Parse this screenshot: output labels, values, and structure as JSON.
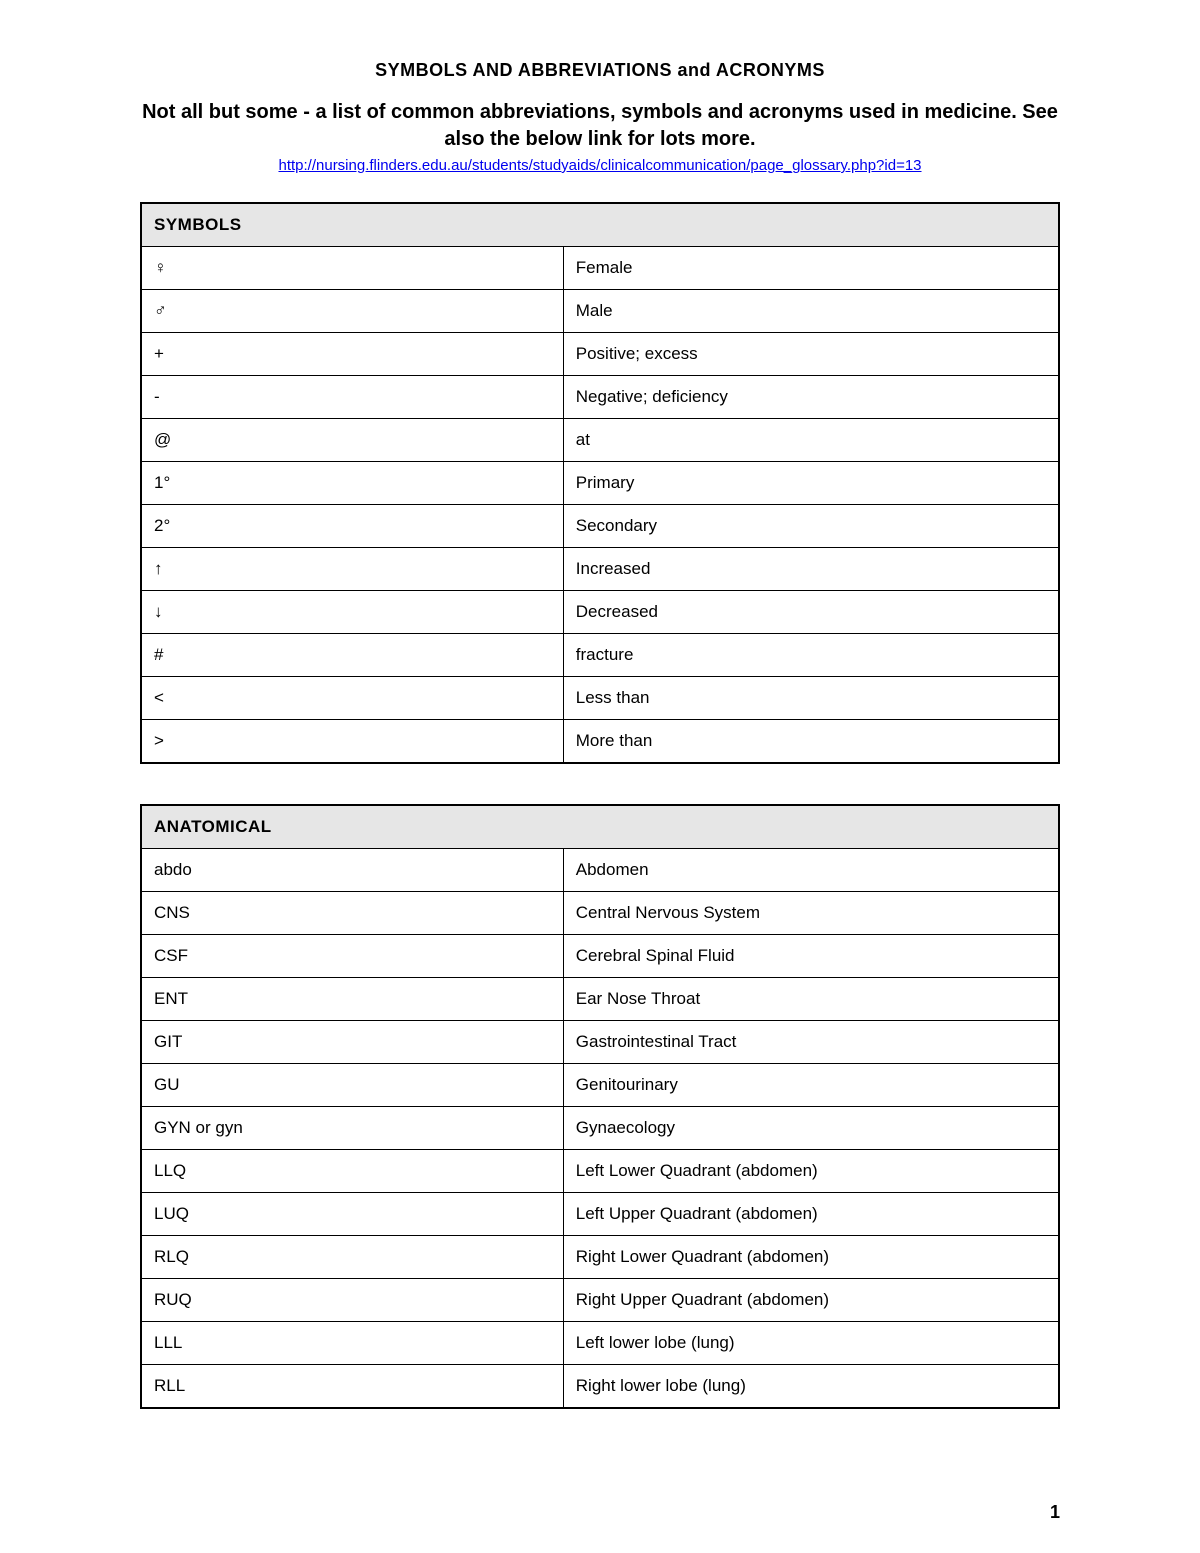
{
  "title": "SYMBOLS AND ABBREVIATIONS and ACRONYMS",
  "subtitle": "Not all but some - a list of common abbreviations, symbols and acronyms used in medicine. See also the below link for lots more.",
  "link_text": "http://nursing.flinders.edu.au/students/studyaids/clinicalcommunication/page_glossary.php?id=13",
  "page_number": "1",
  "tables": [
    {
      "header": "SYMBOLS",
      "rows": [
        {
          "sym": "♀",
          "def": "Female"
        },
        {
          "sym": "♂",
          "def": "Male"
        },
        {
          "sym": "+",
          "def": "Positive; excess"
        },
        {
          "sym": "-",
          "def": "Negative; deficiency"
        },
        {
          "sym": "@",
          "def": "at"
        },
        {
          "sym": "1°",
          "def": "Primary"
        },
        {
          "sym": "2°",
          "def": "Secondary"
        },
        {
          "sym": "↑",
          "def": "Increased"
        },
        {
          "sym": "↓",
          "def": "Decreased"
        },
        {
          "sym": "#",
          "def": "fracture"
        },
        {
          "sym": "<",
          "def": "Less than"
        },
        {
          "sym": ">",
          "def": "More than"
        }
      ]
    },
    {
      "header": "ANATOMICAL",
      "rows": [
        {
          "sym": "abdo",
          "def": "Abdomen"
        },
        {
          "sym": "CNS",
          "def": "Central Nervous System"
        },
        {
          "sym": "CSF",
          "def": "Cerebral Spinal Fluid"
        },
        {
          "sym": "ENT",
          "def": "Ear Nose Throat"
        },
        {
          "sym": "GIT",
          "def": "Gastrointestinal Tract"
        },
        {
          "sym": "GU",
          "def": "Genitourinary"
        },
        {
          "sym": "GYN or gyn",
          "def": "Gynaecology"
        },
        {
          "sym": "LLQ",
          "def": "Left Lower Quadrant (abdomen)"
        },
        {
          "sym": "LUQ",
          "def": "Left Upper Quadrant (abdomen)"
        },
        {
          "sym": "RLQ",
          "def": "Right Lower Quadrant (abdomen)"
        },
        {
          "sym": "RUQ",
          "def": "Right Upper Quadrant (abdomen)"
        },
        {
          "sym": "LLL",
          "def": "Left lower lobe (lung)"
        },
        {
          "sym": "RLL",
          "def": "Right lower lobe (lung)"
        }
      ]
    }
  ],
  "style": {
    "page_bg": "#ffffff",
    "text_color": "#000000",
    "link_color": "#0000ee",
    "header_bg": "#e6e6e6",
    "border_color": "#000000",
    "title_fontsize": 18,
    "subtitle_fontsize": 20,
    "link_fontsize": 15,
    "cell_fontsize": 17,
    "col1_width_pct": 46,
    "col2_width_pct": 54
  }
}
